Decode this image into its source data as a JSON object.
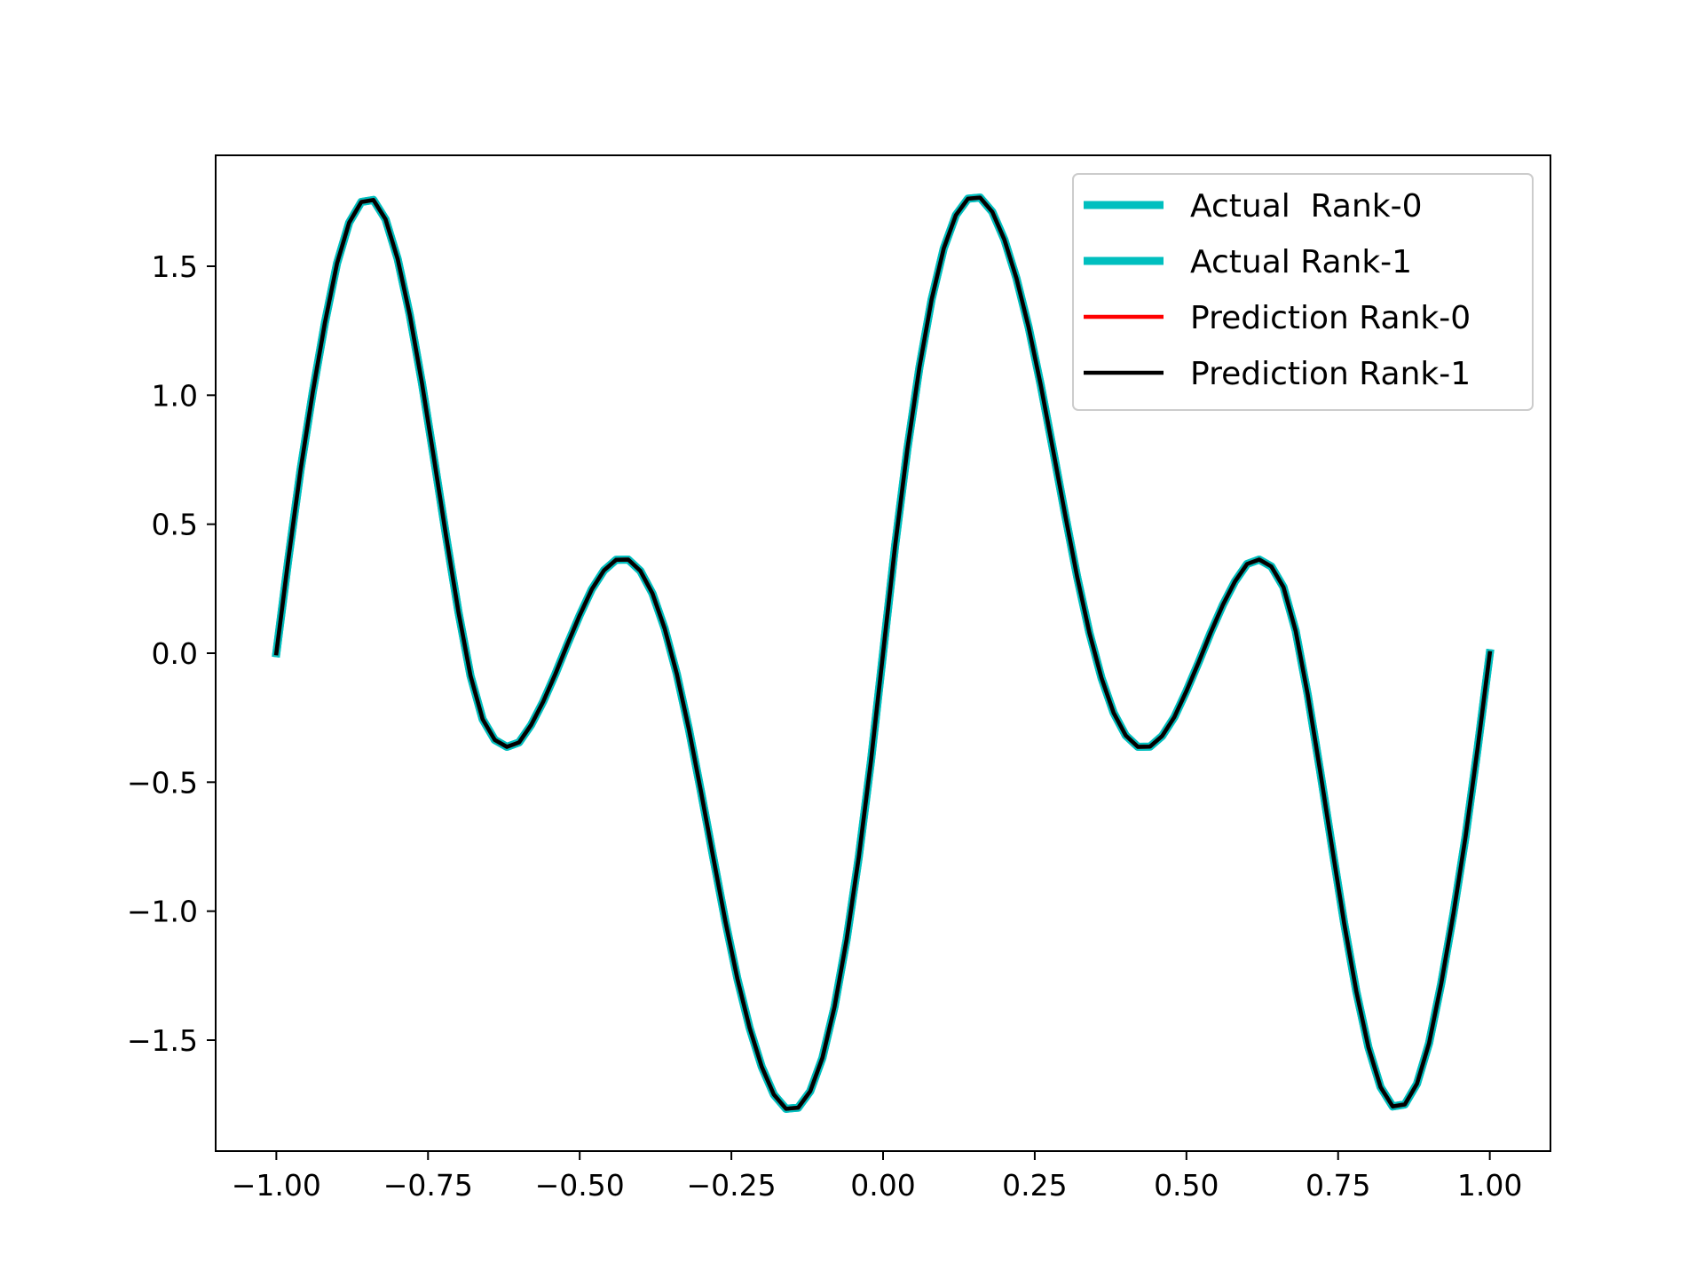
{
  "chart_data": {
    "type": "line",
    "title": "",
    "xlabel": "",
    "ylabel": "",
    "xlim": [
      -1.1,
      1.1
    ],
    "ylim": [
      -1.93,
      1.93
    ],
    "grid": false,
    "legend_position": "top-right",
    "x_ticks": [
      -1.0,
      -0.75,
      -0.5,
      -0.25,
      0.0,
      0.25,
      0.5,
      0.75,
      1.0
    ],
    "x_tick_labels": [
      "−1.00",
      "−0.75",
      "−0.50",
      "−0.25",
      "0.00",
      "0.25",
      "0.50",
      "0.75",
      "1.00"
    ],
    "y_ticks": [
      -1.5,
      -1.0,
      -0.5,
      0.0,
      0.5,
      1.0,
      1.5
    ],
    "y_tick_labels": [
      "−1.5",
      "−1.0",
      "−0.5",
      "0.0",
      "0.5",
      "1.0",
      "1.5"
    ],
    "x": [
      -1.0,
      -0.98,
      -0.96,
      -0.94,
      -0.92,
      -0.9,
      -0.88,
      -0.86,
      -0.84,
      -0.82,
      -0.8,
      -0.78,
      -0.76,
      -0.74,
      -0.72,
      -0.7,
      -0.68,
      -0.66,
      -0.64,
      -0.62,
      -0.6,
      -0.58,
      -0.56,
      -0.54,
      -0.52,
      -0.5,
      -0.48,
      -0.46,
      -0.44,
      -0.42,
      -0.4,
      -0.38,
      -0.36,
      -0.34,
      -0.32,
      -0.3,
      -0.28,
      -0.26,
      -0.24,
      -0.22,
      -0.2,
      -0.18,
      -0.16,
      -0.14,
      -0.12,
      -0.1,
      -0.08,
      -0.06,
      -0.04,
      -0.02,
      0.0,
      0.02,
      0.04,
      0.06,
      0.08,
      0.1,
      0.12,
      0.14,
      0.16,
      0.18,
      0.2,
      0.22,
      0.24,
      0.26,
      0.28,
      0.3,
      0.32,
      0.34,
      0.36,
      0.38,
      0.4,
      0.42,
      0.44,
      0.46,
      0.48,
      0.5,
      0.52,
      0.54,
      0.56,
      0.58,
      0.6,
      0.62,
      0.64,
      0.66,
      0.68,
      0.7,
      0.72,
      0.74,
      0.76,
      0.78,
      0.8,
      0.82,
      0.84,
      0.86,
      0.88,
      0.9,
      0.92,
      0.94,
      0.96,
      0.98,
      1.0
    ],
    "series": [
      {
        "name": "Actual  Rank-0",
        "color": "#00bfbf",
        "values": [
          0.0,
          0.368,
          0.712,
          1.011,
          1.28,
          1.511,
          1.669,
          1.749,
          1.757,
          1.682,
          1.528,
          1.311,
          1.047,
          0.752,
          0.451,
          0.162,
          -0.087,
          -0.256,
          -0.336,
          -0.363,
          -0.346,
          -0.278,
          -0.187,
          -0.08,
          0.036,
          0.147,
          0.248,
          0.321,
          0.362,
          0.363,
          0.319,
          0.231,
          0.096,
          -0.08,
          -0.295,
          -0.538,
          -0.79,
          -1.038,
          -1.263,
          -1.452,
          -1.603,
          -1.711,
          -1.766,
          -1.762,
          -1.698,
          -1.569,
          -1.371,
          -1.109,
          -0.79,
          -0.419,
          0.0,
          0.419,
          0.79,
          1.109,
          1.371,
          1.569,
          1.698,
          1.762,
          1.766,
          1.711,
          1.603,
          1.452,
          1.263,
          1.038,
          0.79,
          0.538,
          0.295,
          0.08,
          -0.096,
          -0.231,
          -0.319,
          -0.363,
          -0.362,
          -0.321,
          -0.248,
          -0.147,
          -0.036,
          0.08,
          0.187,
          0.278,
          0.346,
          0.363,
          0.336,
          0.256,
          0.087,
          -0.162,
          -0.451,
          -0.752,
          -1.047,
          -1.311,
          -1.528,
          -1.682,
          -1.757,
          -1.749,
          -1.669,
          -1.511,
          -1.28,
          -1.011,
          -0.712,
          -0.368,
          0.0
        ]
      },
      {
        "name": "Actual Rank-1",
        "color": "#00bfbf",
        "values": [
          0.0,
          0.368,
          0.712,
          1.011,
          1.28,
          1.511,
          1.669,
          1.749,
          1.757,
          1.682,
          1.528,
          1.311,
          1.047,
          0.752,
          0.451,
          0.162,
          -0.087,
          -0.256,
          -0.336,
          -0.363,
          -0.346,
          -0.278,
          -0.187,
          -0.08,
          0.036,
          0.147,
          0.248,
          0.321,
          0.362,
          0.363,
          0.319,
          0.231,
          0.096,
          -0.08,
          -0.295,
          -0.538,
          -0.79,
          -1.038,
          -1.263,
          -1.452,
          -1.603,
          -1.711,
          -1.766,
          -1.762,
          -1.698,
          -1.569,
          -1.371,
          -1.109,
          -0.79,
          -0.419,
          0.0,
          0.419,
          0.79,
          1.109,
          1.371,
          1.569,
          1.698,
          1.762,
          1.766,
          1.711,
          1.603,
          1.452,
          1.263,
          1.038,
          0.79,
          0.538,
          0.295,
          0.08,
          -0.096,
          -0.231,
          -0.319,
          -0.363,
          -0.362,
          -0.321,
          -0.248,
          -0.147,
          -0.036,
          0.08,
          0.187,
          0.278,
          0.346,
          0.363,
          0.336,
          0.256,
          0.087,
          -0.162,
          -0.451,
          -0.752,
          -1.047,
          -1.311,
          -1.528,
          -1.682,
          -1.757,
          -1.749,
          -1.669,
          -1.511,
          -1.28,
          -1.011,
          -0.712,
          -0.368,
          0.0
        ]
      },
      {
        "name": "Prediction Rank-0",
        "color": "#ff0000",
        "values": [
          0.0,
          0.368,
          0.712,
          1.011,
          1.28,
          1.511,
          1.669,
          1.749,
          1.757,
          1.682,
          1.528,
          1.311,
          1.047,
          0.752,
          0.451,
          0.162,
          -0.087,
          -0.256,
          -0.336,
          -0.363,
          -0.346,
          -0.278,
          -0.187,
          -0.08,
          0.036,
          0.147,
          0.248,
          0.321,
          0.362,
          0.363,
          0.319,
          0.231,
          0.096,
          -0.08,
          -0.295,
          -0.538,
          -0.79,
          -1.038,
          -1.263,
          -1.452,
          -1.603,
          -1.711,
          -1.766,
          -1.762,
          -1.698,
          -1.569,
          -1.371,
          -1.109,
          -0.79,
          -0.419,
          0.0,
          0.419,
          0.79,
          1.109,
          1.371,
          1.569,
          1.698,
          1.762,
          1.766,
          1.711,
          1.603,
          1.452,
          1.263,
          1.038,
          0.79,
          0.538,
          0.295,
          0.08,
          -0.096,
          -0.231,
          -0.319,
          -0.363,
          -0.362,
          -0.321,
          -0.248,
          -0.147,
          -0.036,
          0.08,
          0.187,
          0.278,
          0.346,
          0.363,
          0.336,
          0.256,
          0.087,
          -0.162,
          -0.451,
          -0.752,
          -1.047,
          -1.311,
          -1.528,
          -1.682,
          -1.757,
          -1.749,
          -1.669,
          -1.511,
          -1.28,
          -1.011,
          -0.712,
          -0.368,
          0.0
        ]
      },
      {
        "name": "Prediction Rank-1",
        "color": "#000000",
        "values": [
          0.0,
          0.368,
          0.712,
          1.011,
          1.28,
          1.511,
          1.669,
          1.749,
          1.757,
          1.682,
          1.528,
          1.311,
          1.047,
          0.752,
          0.451,
          0.162,
          -0.087,
          -0.256,
          -0.336,
          -0.363,
          -0.346,
          -0.278,
          -0.187,
          -0.08,
          0.036,
          0.147,
          0.248,
          0.321,
          0.362,
          0.363,
          0.319,
          0.231,
          0.096,
          -0.08,
          -0.295,
          -0.538,
          -0.79,
          -1.038,
          -1.263,
          -1.452,
          -1.603,
          -1.711,
          -1.766,
          -1.762,
          -1.698,
          -1.569,
          -1.371,
          -1.109,
          -0.79,
          -0.419,
          0.0,
          0.419,
          0.79,
          1.109,
          1.371,
          1.569,
          1.698,
          1.762,
          1.766,
          1.711,
          1.603,
          1.452,
          1.263,
          1.038,
          0.79,
          0.538,
          0.295,
          0.08,
          -0.096,
          -0.231,
          -0.319,
          -0.363,
          -0.362,
          -0.321,
          -0.248,
          -0.147,
          -0.036,
          0.08,
          0.187,
          0.278,
          0.346,
          0.363,
          0.336,
          0.256,
          0.087,
          -0.162,
          -0.451,
          -0.752,
          -1.047,
          -1.311,
          -1.528,
          -1.682,
          -1.757,
          -1.749,
          -1.669,
          -1.511,
          -1.28,
          -1.011,
          -0.712,
          -0.368,
          0.0
        ]
      }
    ]
  }
}
